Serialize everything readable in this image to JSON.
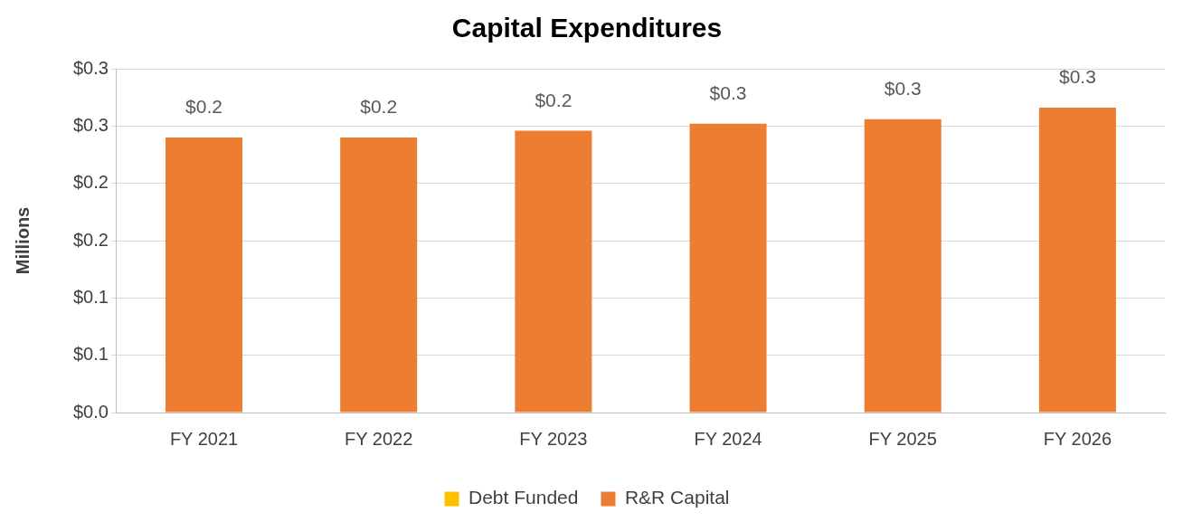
{
  "chart_data": {
    "type": "bar",
    "title": "Capital Expenditures",
    "ylabel": "Millions",
    "categories": [
      "FY 2021",
      "FY 2022",
      "FY 2023",
      "FY 2024",
      "FY 2025",
      "FY 2026"
    ],
    "stacked": true,
    "series": [
      {
        "name": "Debt Funded",
        "color": "#ffc000",
        "values": [
          0,
          0,
          0,
          0,
          0,
          0
        ]
      },
      {
        "name": "R&R Capital",
        "color": "#ed7d31",
        "values": [
          0.24,
          0.24,
          0.246,
          0.252,
          0.256,
          0.266
        ],
        "value_labels": [
          "$0.2",
          "$0.2",
          "$0.2",
          "$0.3",
          "$0.3",
          "$0.3"
        ]
      }
    ],
    "ylim": [
      0,
      0.3
    ],
    "yticks": [
      {
        "value": 0,
        "label": "$0.0"
      },
      {
        "value": 0.05,
        "label": "$0.1"
      },
      {
        "value": 0.1,
        "label": "$0.1"
      },
      {
        "value": 0.15,
        "label": "$0.2"
      },
      {
        "value": 0.2,
        "label": "$0.2"
      },
      {
        "value": 0.25,
        "label": "$0.3"
      },
      {
        "value": 0.3,
        "label": "$0.3"
      }
    ],
    "grid": "y",
    "legend": "bottom"
  }
}
